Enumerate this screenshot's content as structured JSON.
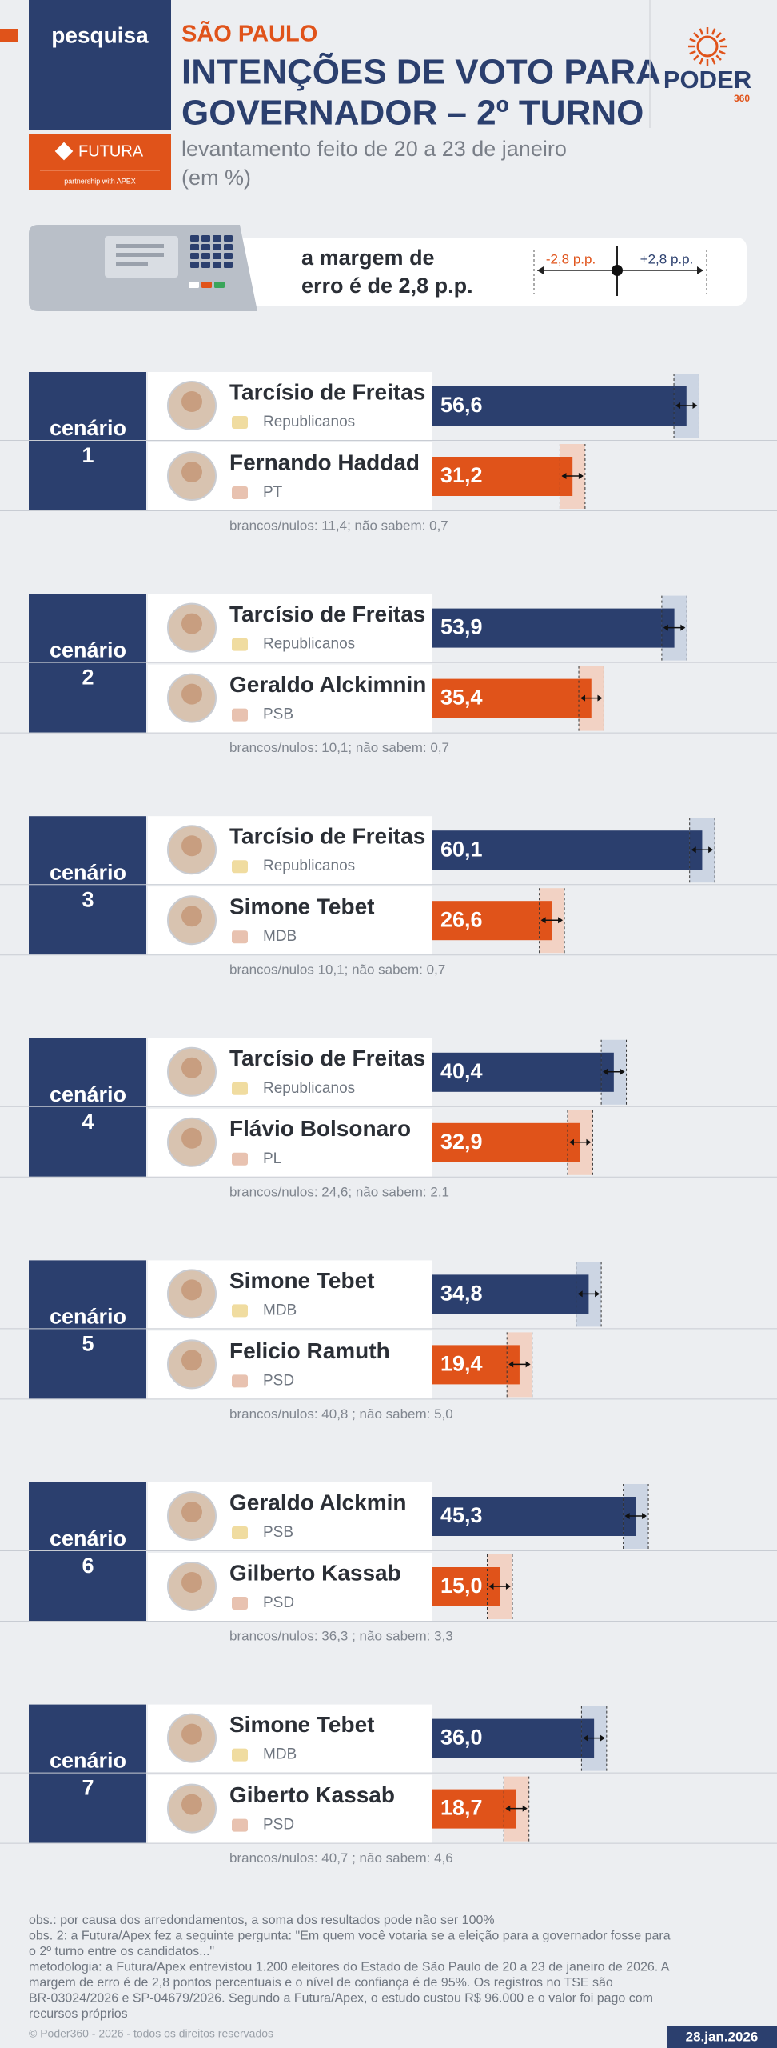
{
  "header": {
    "tag": "pesquisa",
    "partner": "FUTURA",
    "partner_sub": "partnership with APEX",
    "region": "SÃO PAULO",
    "title_lines": [
      "INTENÇÕES DE VOTO PARA",
      "GOVERNADOR – 2º TURNO"
    ],
    "subtitle_lines": [
      "levantamento feito de 20 a 23 de janeiro",
      "(em %)"
    ],
    "brand": "PODER",
    "brand_sub": "360"
  },
  "margin": {
    "text_lines": [
      "a margem de",
      "erro é de 2,8 p.p."
    ],
    "minus_label": "-2,8 p.p.",
    "plus_label": "+2,8 p.p.",
    "value": 2.8
  },
  "chart_data": [
    {
      "type": "bar",
      "title": "cenário",
      "number": 1,
      "categories": [
        "Tarcísio de Freitas",
        "Fernando Haddad"
      ],
      "parties": [
        "Republicanos",
        "PT"
      ],
      "values": [
        56.6,
        31.2
      ],
      "value_labels": [
        "56,6",
        "31,2"
      ],
      "colors": [
        "#2b3f6e",
        "#e0531a"
      ],
      "xlim": [
        0,
        70
      ],
      "note": "brancos/nulos: 11,4; não sabem: 0,7"
    },
    {
      "type": "bar",
      "title": "cenário",
      "number": 2,
      "categories": [
        "Tarcísio de Freitas",
        "Geraldo Alckimnin"
      ],
      "parties": [
        "Republicanos",
        "PSB"
      ],
      "values": [
        53.9,
        35.4
      ],
      "value_labels": [
        "53,9",
        "35,4"
      ],
      "colors": [
        "#2b3f6e",
        "#e0531a"
      ],
      "xlim": [
        0,
        70
      ],
      "note": "brancos/nulos: 10,1; não sabem: 0,7"
    },
    {
      "type": "bar",
      "title": "cenário",
      "number": 3,
      "categories": [
        "Tarcísio de Freitas",
        "Simone Tebet"
      ],
      "parties": [
        "Republicanos",
        "MDB"
      ],
      "values": [
        60.1,
        26.6
      ],
      "value_labels": [
        "60,1",
        "26,6"
      ],
      "colors": [
        "#2b3f6e",
        "#e0531a"
      ],
      "xlim": [
        0,
        70
      ],
      "note": "brancos/nulos 10,1; não sabem: 0,7"
    },
    {
      "type": "bar",
      "title": "cenário",
      "number": 4,
      "categories": [
        "Tarcísio de Freitas",
        "Flávio Bolsonaro"
      ],
      "parties": [
        "Republicanos",
        "PL"
      ],
      "values": [
        40.4,
        32.9
      ],
      "value_labels": [
        "40,4",
        "32,9"
      ],
      "colors": [
        "#2b3f6e",
        "#e0531a"
      ],
      "xlim": [
        0,
        70
      ],
      "note": "brancos/nulos: 24,6; não sabem: 2,1"
    },
    {
      "type": "bar",
      "title": "cenário",
      "number": 5,
      "categories": [
        "Simone Tebet",
        "Felicio Ramuth"
      ],
      "parties": [
        "MDB",
        "PSD"
      ],
      "values": [
        34.8,
        19.4
      ],
      "value_labels": [
        "34,8",
        "19,4"
      ],
      "colors": [
        "#2b3f6e",
        "#e0531a"
      ],
      "xlim": [
        0,
        70
      ],
      "note": "brancos/nulos: 40,8 ; não sabem: 5,0"
    },
    {
      "type": "bar",
      "title": "cenário",
      "number": 6,
      "categories": [
        "Geraldo Alckmin",
        "Gilberto Kassab"
      ],
      "parties": [
        "PSB",
        "PSD"
      ],
      "values": [
        45.3,
        15.0
      ],
      "value_labels": [
        "45,3",
        "15,0"
      ],
      "colors": [
        "#2b3f6e",
        "#e0531a"
      ],
      "xlim": [
        0,
        70
      ],
      "note": "brancos/nulos: 36,3 ; não sabem: 3,3"
    },
    {
      "type": "bar",
      "title": "cenário",
      "number": 7,
      "categories": [
        "Simone Tebet",
        "Giberto Kassab"
      ],
      "parties": [
        "MDB",
        "PSD"
      ],
      "values": [
        36.0,
        18.7
      ],
      "value_labels": [
        "36,0",
        "18,7"
      ],
      "colors": [
        "#2b3f6e",
        "#e0531a"
      ],
      "xlim": [
        0,
        70
      ],
      "note": "brancos/nulos: 40,7 ; não sabem: 4,6"
    }
  ],
  "footer": {
    "notes": [
      "obs.: por causa dos arredondamentos, a soma dos resultados pode não ser 100%",
      "obs. 2: a Futura/Apex fez a seguinte pergunta: \"Em quem você votaria se a eleição para a governador fosse para",
      "o 2º turno entre os candidatos...\"",
      "metodologia: a Futura/Apex entrevistou 1.200 eleitores do Estado de São Paulo de 20 a 23 de janeiro de 2026. A",
      "margem de erro é de 2,8 pontos percentuais e o nível de confiança é de 95%. Os registros no TSE são",
      "BR-03024/2026 e SP-04679/2026. Segundo a Futura/Apex, o estudo custou R$ 96.000 e o valor foi pago com",
      "recursos próprios"
    ],
    "copyright": "© Poder360 - 2026 - todos os direitos reservados",
    "date": "28.jan.2026"
  }
}
